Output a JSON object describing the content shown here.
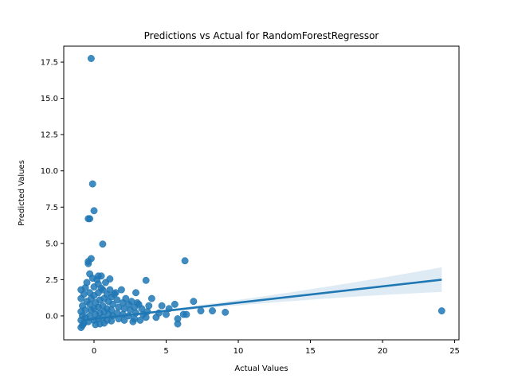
{
  "chart_data": {
    "type": "scatter",
    "title": "Predictions vs Actual for RandomForestRegressor",
    "xlabel": "Actual Values",
    "ylabel": "Predicted Values",
    "xlim": [
      -2.1,
      25.3
    ],
    "ylim": [
      -1.65,
      18.6
    ],
    "xticks": [
      0,
      5,
      10,
      15,
      20,
      25
    ],
    "xtick_labels": [
      "0",
      "5",
      "10",
      "15",
      "20",
      "25"
    ],
    "yticks": [
      0.0,
      2.5,
      5.0,
      7.5,
      10.0,
      12.5,
      15.0,
      17.5
    ],
    "ytick_labels": [
      "0.0",
      "2.5",
      "5.0",
      "7.5",
      "10.0",
      "12.5",
      "15.0",
      "17.5"
    ],
    "grid": false,
    "legend": "none",
    "point_color": "#1f77b4",
    "regression": {
      "x_start": -0.8,
      "y_start": -0.3,
      "x_end": 24.1,
      "y_end": 2.5,
      "ci_at_start": 0.12,
      "ci_at_end": 0.85,
      "ci_min": 0.06
    },
    "points": [
      {
        "x": -0.2,
        "y": 17.75
      },
      {
        "x": -0.1,
        "y": 9.1
      },
      {
        "x": 0.0,
        "y": 7.25
      },
      {
        "x": -0.3,
        "y": 6.7
      },
      {
        "x": -0.4,
        "y": 6.7
      },
      {
        "x": 0.6,
        "y": 4.95
      },
      {
        "x": -0.2,
        "y": 3.95
      },
      {
        "x": -0.4,
        "y": 3.75
      },
      {
        "x": -0.4,
        "y": 3.6
      },
      {
        "x": 6.3,
        "y": 3.8
      },
      {
        "x": -0.3,
        "y": 2.9
      },
      {
        "x": 0.3,
        "y": 2.75
      },
      {
        "x": 0.5,
        "y": 2.75
      },
      {
        "x": -0.5,
        "y": 2.3
      },
      {
        "x": 1.1,
        "y": 2.55
      },
      {
        "x": 3.6,
        "y": 2.45
      },
      {
        "x": 1.9,
        "y": 1.8
      },
      {
        "x": 2.9,
        "y": 1.6
      },
      {
        "x": 1.4,
        "y": 1.5
      },
      {
        "x": 4.0,
        "y": 1.2
      },
      {
        "x": 6.9,
        "y": 1.0
      },
      {
        "x": 3.0,
        "y": 0.9
      },
      {
        "x": 5.6,
        "y": 0.8
      },
      {
        "x": 4.7,
        "y": 0.7
      },
      {
        "x": 3.8,
        "y": 0.7
      },
      {
        "x": 5.2,
        "y": 0.5
      },
      {
        "x": 7.4,
        "y": 0.35
      },
      {
        "x": 8.2,
        "y": 0.35
      },
      {
        "x": 9.1,
        "y": 0.25
      },
      {
        "x": 6.2,
        "y": 0.1
      },
      {
        "x": 6.4,
        "y": 0.1
      },
      {
        "x": 5.8,
        "y": -0.2
      },
      {
        "x": 5.8,
        "y": -0.55
      },
      {
        "x": 4.3,
        "y": -0.1
      },
      {
        "x": 3.2,
        "y": -0.3
      },
      {
        "x": 2.7,
        "y": -0.4
      },
      {
        "x": 24.1,
        "y": 0.35
      },
      {
        "x": -0.9,
        "y": -0.8
      },
      {
        "x": -0.8,
        "y": -0.65
      },
      {
        "x": -0.7,
        "y": -0.5
      },
      {
        "x": -0.9,
        "y": 1.8
      },
      {
        "x": -0.9,
        "y": 1.2
      },
      {
        "x": -0.8,
        "y": 0.7
      },
      {
        "x": -0.9,
        "y": 0.3
      },
      {
        "x": -0.8,
        "y": 0.0
      },
      {
        "x": -0.9,
        "y": -0.3
      },
      {
        "x": -0.6,
        "y": 1.95
      },
      {
        "x": -0.7,
        "y": 1.5
      },
      {
        "x": -0.5,
        "y": 1.0
      },
      {
        "x": -0.6,
        "y": 0.4
      },
      {
        "x": -0.6,
        "y": -0.1
      },
      {
        "x": -0.3,
        "y": 1.6
      },
      {
        "x": -0.2,
        "y": 1.2
      },
      {
        "x": -0.3,
        "y": 0.8
      },
      {
        "x": -0.2,
        "y": 0.4
      },
      {
        "x": -0.3,
        "y": 0.0
      },
      {
        "x": -0.4,
        "y": -0.4
      },
      {
        "x": 0.0,
        "y": 2.0
      },
      {
        "x": 0.0,
        "y": 1.4
      },
      {
        "x": 0.1,
        "y": 0.9
      },
      {
        "x": 0.0,
        "y": 0.5
      },
      {
        "x": 0.1,
        "y": 0.1
      },
      {
        "x": 0.0,
        "y": -0.3
      },
      {
        "x": 0.1,
        "y": -0.6
      },
      {
        "x": 0.3,
        "y": 2.2
      },
      {
        "x": 0.3,
        "y": 1.6
      },
      {
        "x": 0.4,
        "y": 1.1
      },
      {
        "x": 0.3,
        "y": 0.6
      },
      {
        "x": 0.4,
        "y": 0.2
      },
      {
        "x": 0.3,
        "y": -0.2
      },
      {
        "x": 0.4,
        "y": -0.55
      },
      {
        "x": 0.6,
        "y": 1.8
      },
      {
        "x": 0.7,
        "y": 1.2
      },
      {
        "x": 0.6,
        "y": 0.7
      },
      {
        "x": 0.7,
        "y": 0.3
      },
      {
        "x": 0.6,
        "y": -0.1
      },
      {
        "x": 0.7,
        "y": -0.5
      },
      {
        "x": 0.9,
        "y": 1.5
      },
      {
        "x": 1.0,
        "y": 1.0
      },
      {
        "x": 0.9,
        "y": 0.5
      },
      {
        "x": 1.0,
        "y": 0.1
      },
      {
        "x": 0.9,
        "y": -0.3
      },
      {
        "x": 1.2,
        "y": 1.3
      },
      {
        "x": 1.3,
        "y": 0.8
      },
      {
        "x": 1.2,
        "y": 0.4
      },
      {
        "x": 1.3,
        "y": 0.0
      },
      {
        "x": 1.2,
        "y": -0.35
      },
      {
        "x": 1.6,
        "y": 1.1
      },
      {
        "x": 1.7,
        "y": 0.6
      },
      {
        "x": 1.6,
        "y": 0.2
      },
      {
        "x": 1.7,
        "y": -0.2
      },
      {
        "x": 2.0,
        "y": 0.9
      },
      {
        "x": 2.1,
        "y": 0.5
      },
      {
        "x": 2.0,
        "y": 0.1
      },
      {
        "x": 2.1,
        "y": -0.3
      },
      {
        "x": 2.4,
        "y": 0.8
      },
      {
        "x": 2.5,
        "y": 0.4
      },
      {
        "x": 2.4,
        "y": 0.0
      },
      {
        "x": 2.8,
        "y": 0.6
      },
      {
        "x": 2.9,
        "y": 0.2
      },
      {
        "x": 2.8,
        "y": -0.2
      },
      {
        "x": 3.3,
        "y": 0.5
      },
      {
        "x": 3.4,
        "y": 0.1
      },
      {
        "x": 3.7,
        "y": 0.3
      },
      {
        "x": 3.6,
        "y": -0.1
      },
      {
        "x": 4.5,
        "y": 0.2
      },
      {
        "x": 5.0,
        "y": 0.1
      },
      {
        "x": 1.5,
        "y": 1.6
      },
      {
        "x": 2.2,
        "y": 1.2
      },
      {
        "x": 0.2,
        "y": 2.5
      },
      {
        "x": 0.8,
        "y": 2.3
      },
      {
        "x": -0.1,
        "y": 2.6
      },
      {
        "x": 0.5,
        "y": 1.9
      },
      {
        "x": 1.1,
        "y": 1.8
      },
      {
        "x": 2.6,
        "y": 1.0
      },
      {
        "x": 3.1,
        "y": 0.8
      }
    ]
  }
}
